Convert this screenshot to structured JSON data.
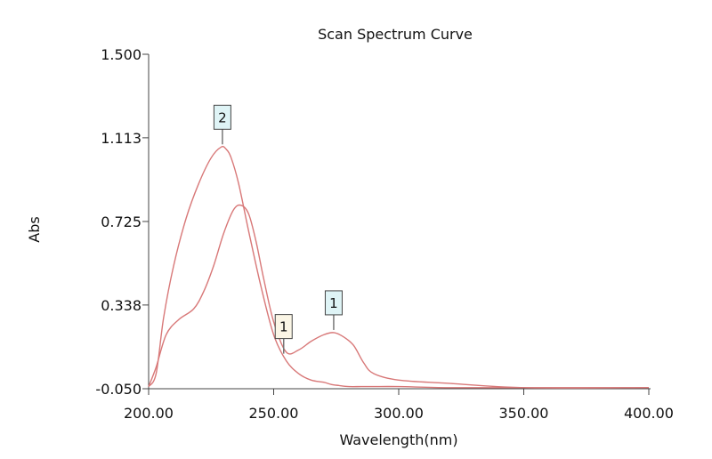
{
  "chart_data": {
    "type": "line",
    "title": "Scan Spectrum Curve",
    "xlabel": "Wavelength(nm)",
    "ylabel": "Abs",
    "xlim": [
      200,
      400
    ],
    "ylim": [
      -0.05,
      1.5
    ],
    "x_ticks": [
      200,
      250,
      300,
      350,
      400
    ],
    "x_tick_labels": [
      "200.00",
      "250.00",
      "300.00",
      "350.00",
      "400.00"
    ],
    "y_ticks": [
      -0.05,
      0.338,
      0.725,
      1.113,
      1.5
    ],
    "y_tick_labels": [
      "-0.050",
      "0.338",
      "0.725",
      "1.113",
      "1.500"
    ],
    "line_color": "#d87878",
    "grid": false,
    "series": [
      {
        "x": [
          200,
          203,
          206,
          210,
          215,
          220,
          225,
          229,
          231,
          233,
          236,
          240,
          245,
          250,
          255,
          260,
          265,
          270,
          273,
          276,
          280,
          285,
          290,
          300,
          320,
          350,
          380,
          400
        ],
        "y": [
          -0.04,
          0.02,
          0.28,
          0.52,
          0.74,
          0.9,
          1.02,
          1.07,
          1.06,
          1.02,
          0.9,
          0.68,
          0.42,
          0.2,
          0.08,
          0.02,
          -0.01,
          -0.02,
          -0.03,
          -0.035,
          -0.04,
          -0.04,
          -0.04,
          -0.04,
          -0.045,
          -0.045,
          -0.045,
          -0.045
        ]
      },
      {
        "x": [
          200,
          203,
          207,
          212,
          218,
          222,
          226,
          230,
          234,
          237,
          240,
          243,
          246,
          250,
          255,
          260,
          265,
          270,
          274,
          278,
          282,
          286,
          290,
          300,
          320,
          350,
          400
        ],
        "y": [
          -0.04,
          0.05,
          0.2,
          0.27,
          0.32,
          0.4,
          0.52,
          0.67,
          0.78,
          0.8,
          0.76,
          0.63,
          0.46,
          0.26,
          0.12,
          0.13,
          0.17,
          0.2,
          0.21,
          0.19,
          0.15,
          0.07,
          0.02,
          -0.01,
          -0.025,
          -0.045,
          -0.045
        ]
      }
    ],
    "markers": [
      {
        "label": "2",
        "x": 229.5,
        "y": 1.07,
        "fill": "#dff4f6"
      },
      {
        "label": "1",
        "x": 254,
        "y": 0.1,
        "fill": "#fbf6e6"
      },
      {
        "label": "1",
        "x": 274,
        "y": 0.21,
        "fill": "#dff4f6"
      }
    ]
  }
}
